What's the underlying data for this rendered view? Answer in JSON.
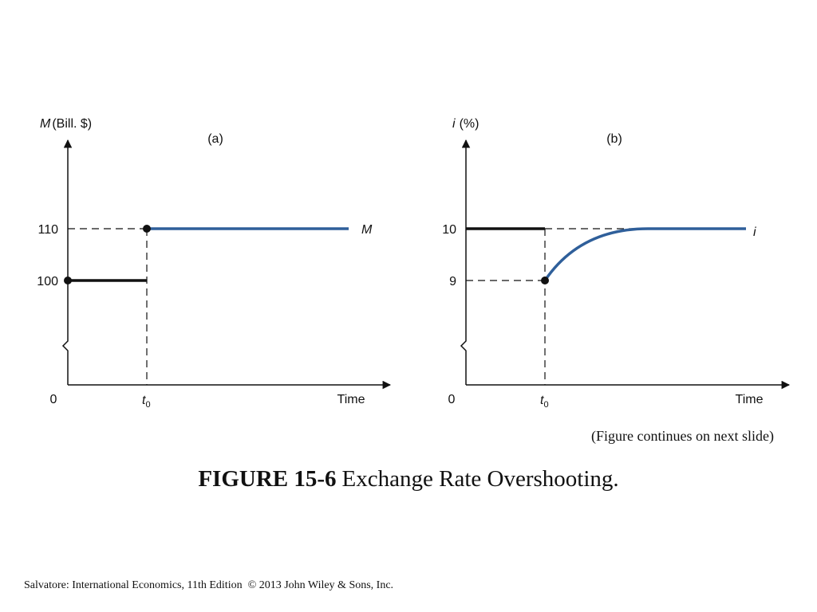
{
  "panels": [
    {
      "label": "(a)",
      "y_axis_symbol": "M",
      "y_axis_unit": "(Bill. $)",
      "ticks": [
        "110",
        "100"
      ],
      "origin": "0",
      "t_symbol": "t",
      "t_subscript": "0",
      "x_axis_label": "Time",
      "curve_label": "M"
    },
    {
      "label": "(b)",
      "y_axis_symbol": "i",
      "y_axis_unit": "(%)",
      "ticks": [
        "10",
        "9"
      ],
      "origin": "0",
      "t_symbol": "t",
      "t_subscript": "0",
      "x_axis_label": "Time",
      "curve_label": "i"
    }
  ],
  "note": "(Figure continues on next slide)",
  "caption": {
    "number": "FIGURE 15-6",
    "title": "Exchange Rate Overshooting."
  },
  "footer": "Salvatore: International Economics, 11th Edition  © 2013 John Wiley & Sons, Inc."
}
